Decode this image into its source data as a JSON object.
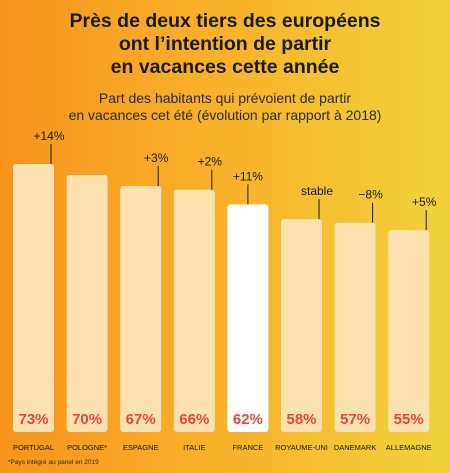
{
  "title_lines": [
    "Près de deux tiers des européens",
    "ont l’intention de partir",
    "en vacances cette année"
  ],
  "subtitle_lines": [
    "Part des habitants qui prévoient de partir",
    "en vacances cet été (évolution par rapport à 2018)"
  ],
  "footnote": "*Pays intégré au panel en 2019",
  "colors": {
    "bar": "#fbe1b0",
    "bar_highlight": "#ffffff",
    "value_label": "#e8473a",
    "text": "#1a1a1a"
  },
  "chart_data": {
    "type": "bar",
    "categories": [
      "PORTUGAL",
      "POLOGNE*",
      "ESPAGNE",
      "ITALIE",
      "FRANCE",
      "ROYAUME-UNI",
      "DANEMARK",
      "ALLEMAGNE"
    ],
    "values": [
      73,
      70,
      67,
      66,
      62,
      58,
      57,
      55
    ],
    "value_labels": [
      "73%",
      "70%",
      "67%",
      "66%",
      "62%",
      "58%",
      "57%",
      "55%"
    ],
    "evolution_labels": [
      "+14%",
      "",
      "+3%",
      "+2%",
      "+11%",
      "stable",
      "−8%",
      "+5%"
    ],
    "highlight": "FRANCE",
    "unit": "%"
  }
}
